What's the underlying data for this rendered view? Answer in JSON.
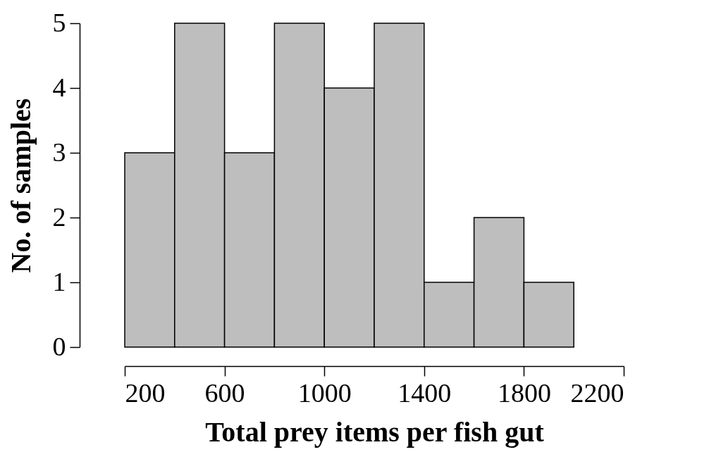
{
  "chart_data": {
    "type": "histogram",
    "xlabel": "Total prey items per fish gut",
    "ylabel": "No. of samples",
    "bins": [
      200,
      400,
      600,
      800,
      1000,
      1200,
      1400,
      1600,
      1800,
      2000
    ],
    "values": [
      3,
      5,
      3,
      5,
      4,
      5,
      1,
      2,
      1
    ],
    "color": "#bebebe",
    "xlim": [
      200,
      2200
    ],
    "xticks": [
      200,
      600,
      1000,
      1400,
      1800,
      2200
    ],
    "ylim": [
      0,
      5
    ],
    "yticks": [
      0,
      1,
      2,
      3,
      4,
      5
    ],
    "grid": false
  }
}
